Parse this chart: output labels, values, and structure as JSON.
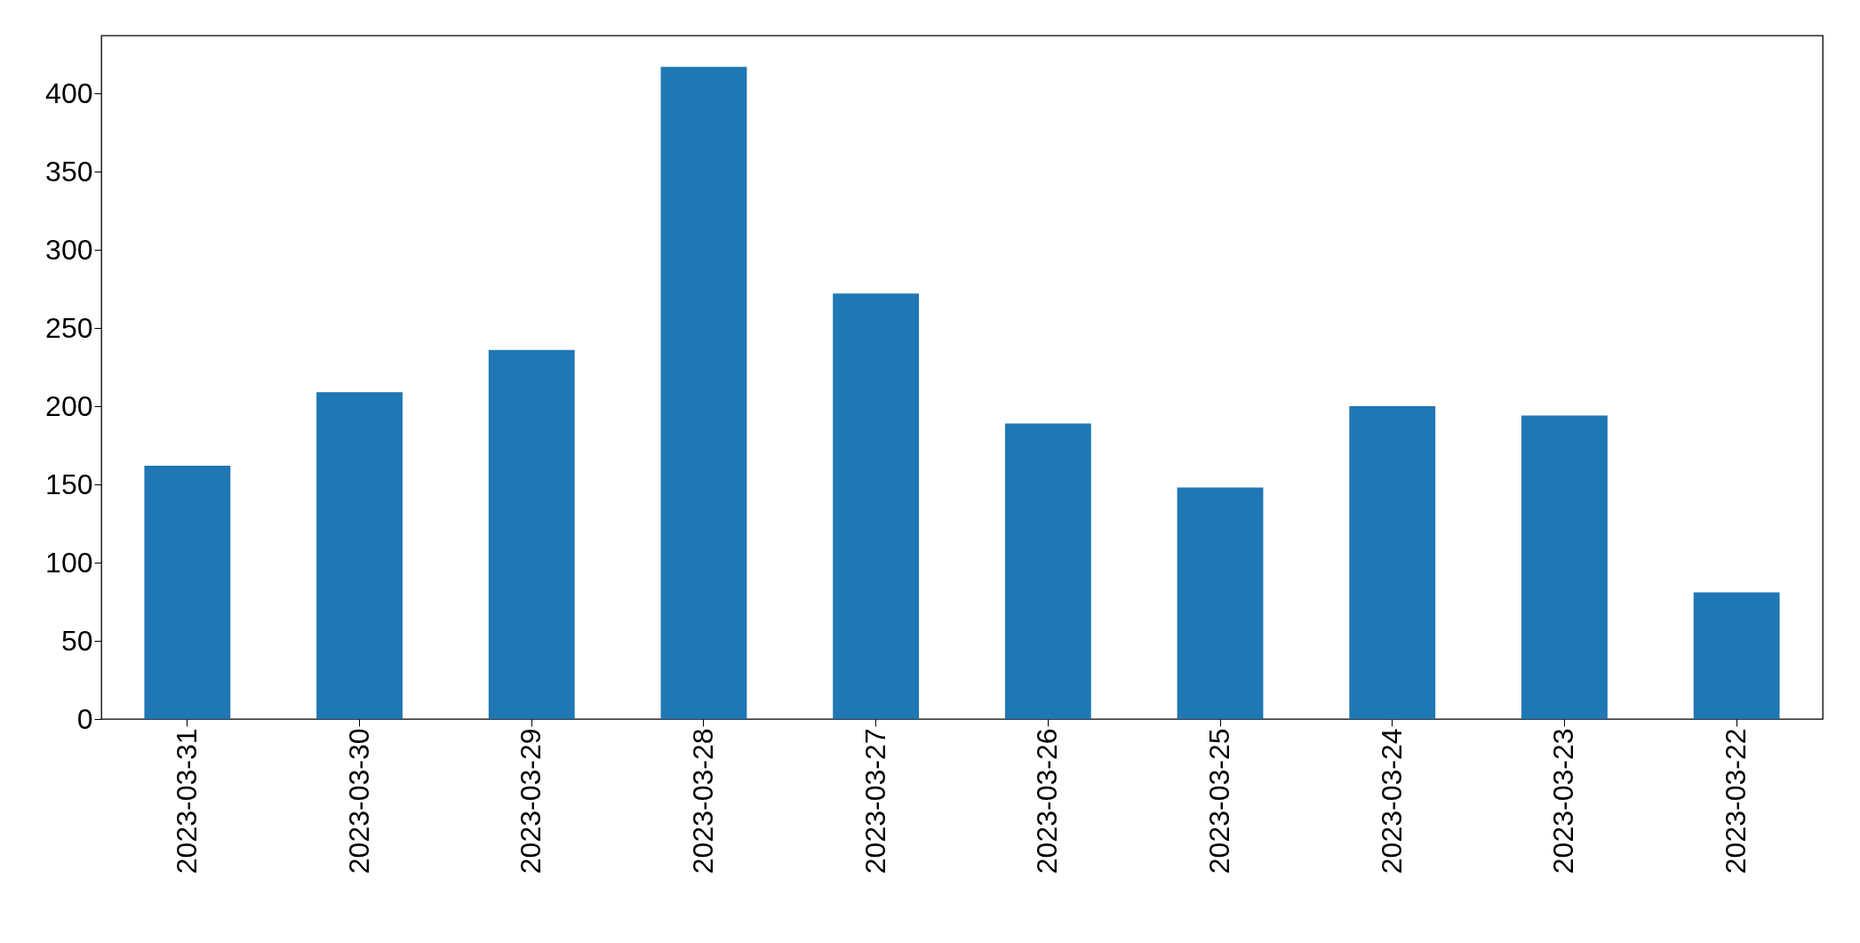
{
  "chart_data": {
    "type": "bar",
    "categories": [
      "2023-03-31",
      "2023-03-30",
      "2023-03-29",
      "2023-03-28",
      "2023-03-27",
      "2023-03-26",
      "2023-03-25",
      "2023-03-24",
      "2023-03-23",
      "2023-03-22"
    ],
    "values": [
      162,
      209,
      236,
      417,
      272,
      189,
      148,
      200,
      194,
      81
    ],
    "color": "#1f77b4",
    "ylim": [
      0,
      437
    ],
    "yticks": [
      0,
      50,
      100,
      150,
      200,
      250,
      300,
      350,
      400
    ],
    "grid": false
  }
}
